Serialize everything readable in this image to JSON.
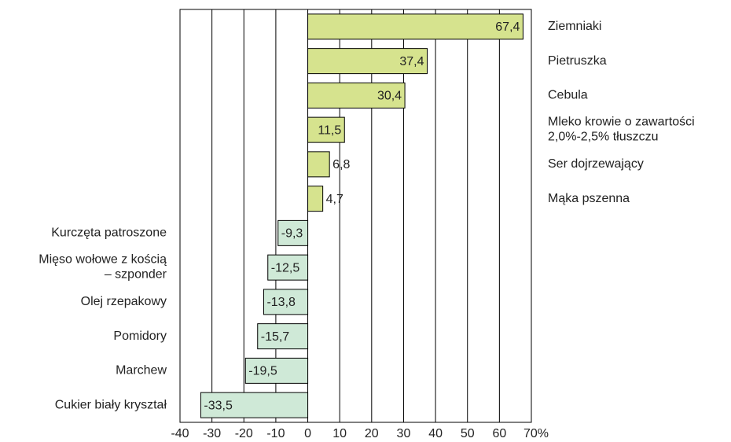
{
  "chart_data": {
    "type": "barh",
    "categories": [
      "Ziemniaki",
      "Pietruszka",
      "Cebula",
      "Mleko krowie o zawartości\n2,0%-2,5% tłuszczu",
      "Ser dojrzewający",
      "Mąka pszenna",
      "Kurczęta patroszone",
      "Mięso wołowe z kością\n– szponder",
      "Olej rzepakowy",
      "Pomidory",
      "Marchew",
      "Cukier biały kryształ"
    ],
    "values": [
      67.4,
      37.4,
      30.4,
      11.5,
      6.8,
      4.7,
      -9.3,
      -12.5,
      -13.8,
      -15.7,
      -19.5,
      -33.5
    ],
    "value_labels": [
      "67,4",
      "37,4",
      "30,4",
      "11,5",
      "6,8",
      "4,7",
      "-9,3",
      "-12,5",
      "-13,8",
      "-15,7",
      "-19,5",
      "-33,5"
    ],
    "positive_color": "#d6e38e",
    "negative_color": "#cfe9d7",
    "xlim": [
      -40,
      70
    ],
    "xticks": [
      -40,
      -30,
      -20,
      -10,
      0,
      10,
      20,
      30,
      40,
      50,
      60,
      {
        "value": 70,
        "label": "70%"
      }
    ],
    "grid": true
  }
}
